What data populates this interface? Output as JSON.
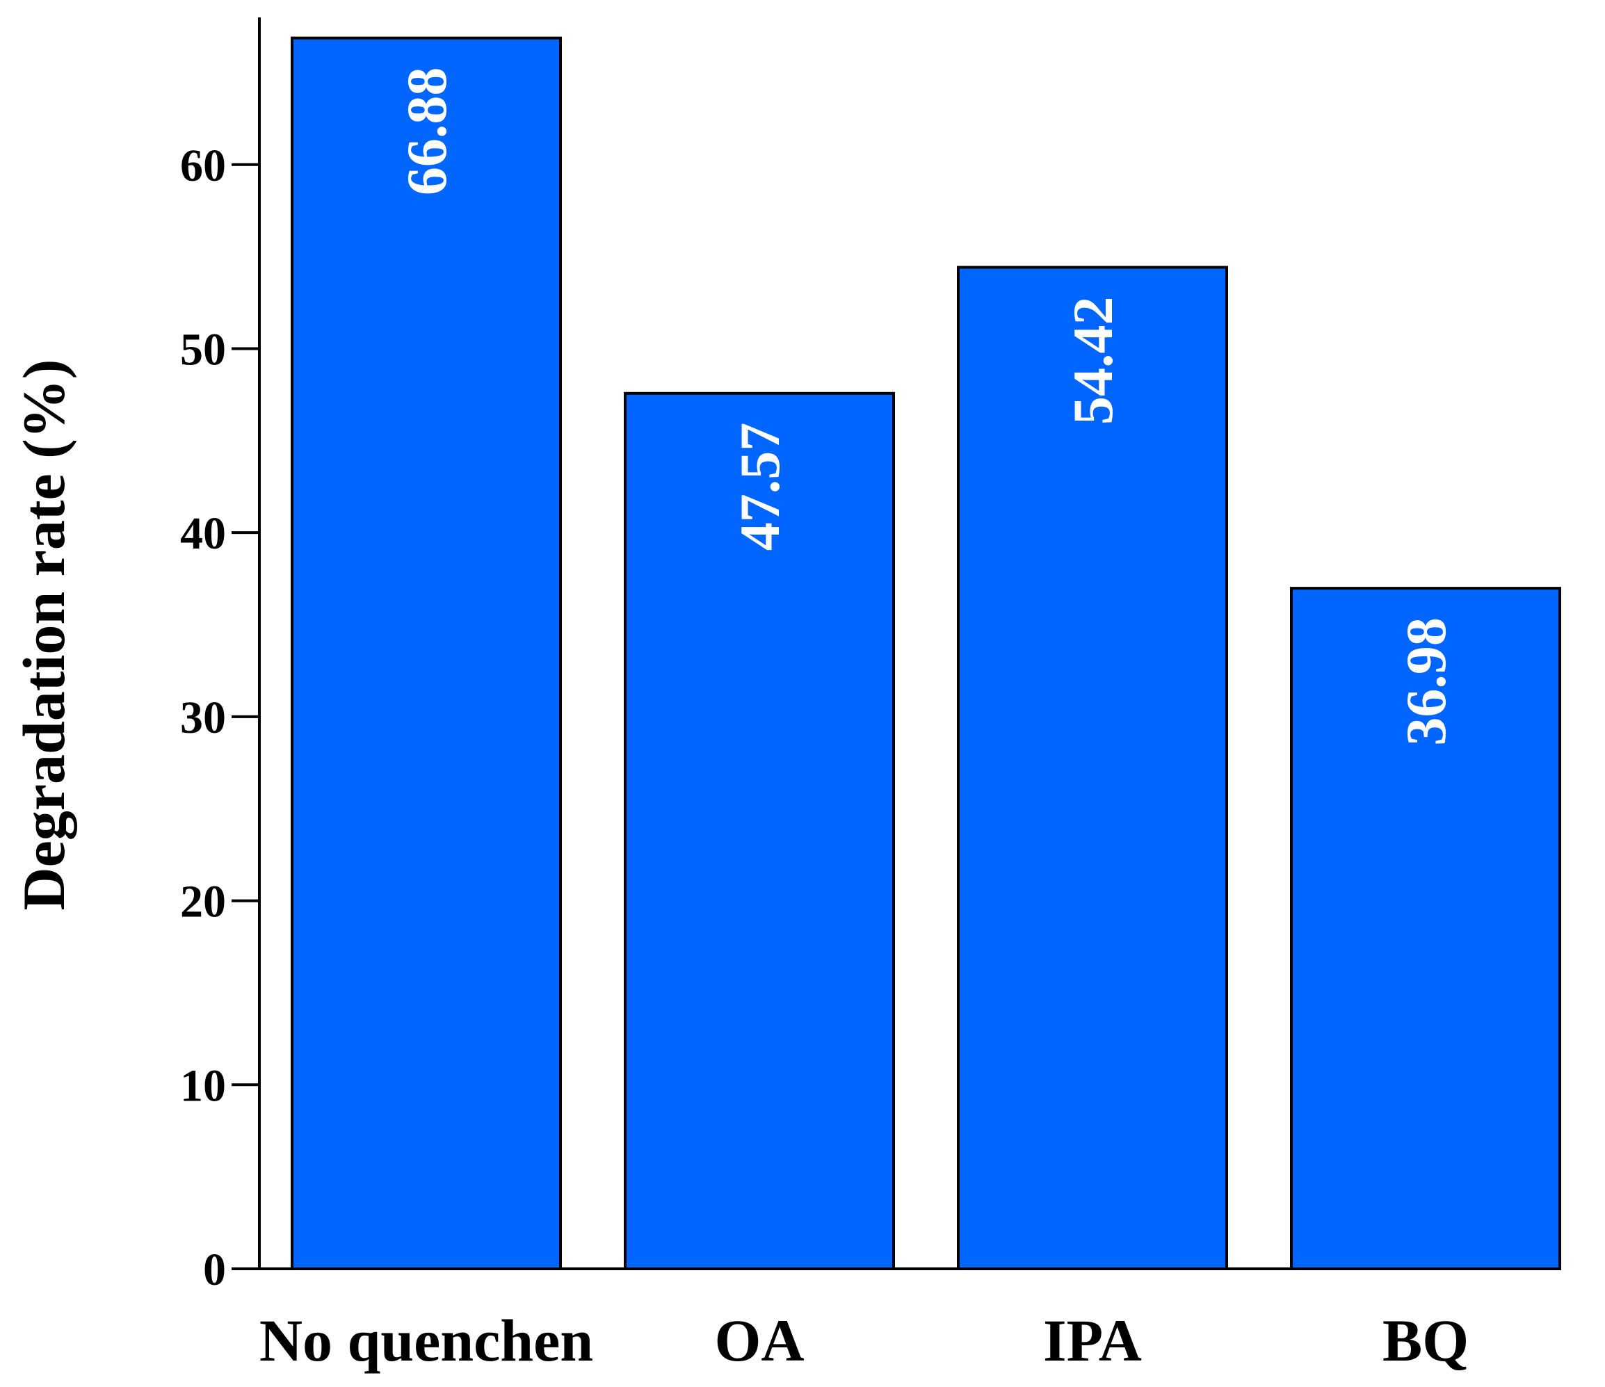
{
  "chart_data": {
    "type": "bar",
    "categories": [
      "No quenchen",
      "OA",
      "IPA",
      "BQ"
    ],
    "values": [
      66.88,
      47.57,
      54.42,
      36.98
    ],
    "data_labels": [
      "66.88",
      "47.57",
      "54.42",
      "36.98"
    ],
    "ylabel": "Degradation rate (%)",
    "xlabel": "",
    "ylim": [
      0,
      68
    ],
    "yticks": [
      0,
      10,
      20,
      30,
      40,
      50,
      60
    ],
    "ytick_labels": [
      "0",
      "10",
      "20",
      "30",
      "40",
      "50",
      "60"
    ],
    "grid": false,
    "legend": "none",
    "bar_color": "#0066ff",
    "bar_edge_color": "#000000",
    "label_color": "#ffffff"
  }
}
